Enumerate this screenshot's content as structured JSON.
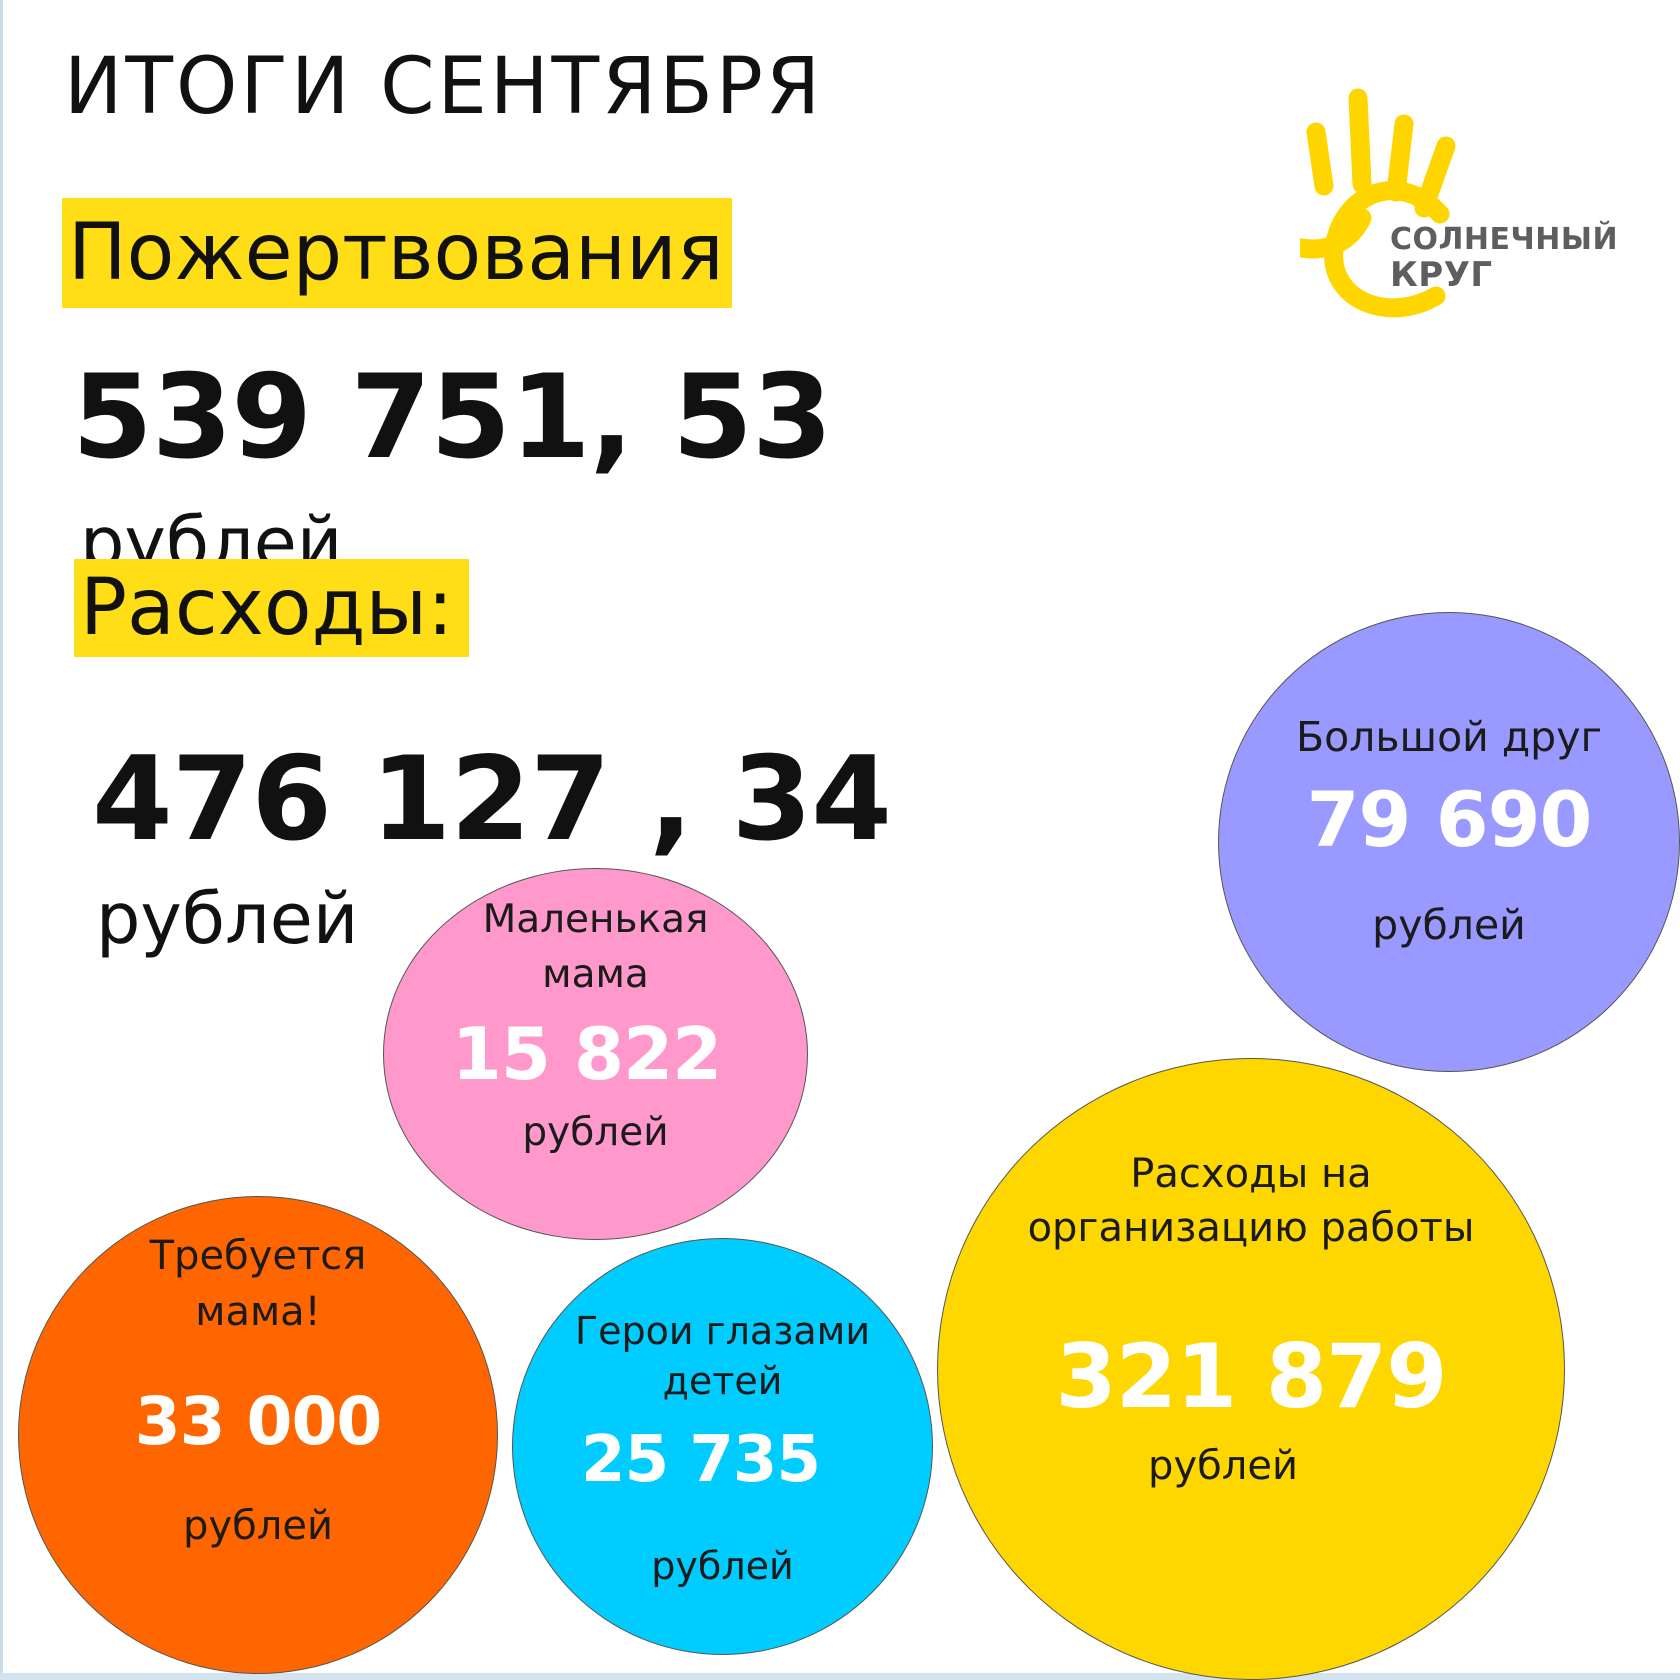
{
  "title": "ИТОГИ СЕНТЯБРЯ",
  "donations": {
    "label": "Пожертвования",
    "amount": "539 751, 53",
    "unit": "рублей"
  },
  "expenses": {
    "label": "Расходы:",
    "amount": "476 127 , 34",
    "unit": "рублей"
  },
  "logo": {
    "line1": "СОЛНЕЧНЫЙ",
    "line2": "КРУГ",
    "color": "#ffd500"
  },
  "categories": {
    "big_friend": {
      "label": "Большой друг",
      "value": "79 690",
      "unit": "рублей",
      "color": "#9999ff"
    },
    "little_mom": {
      "label_line1": "Маленькая",
      "label_line2": "мама",
      "value": "15 822",
      "unit": "рублей",
      "color": "#ff99cc"
    },
    "mom_needed": {
      "label_line1": "Требуется",
      "label_line2": "мама!",
      "value": "33 000",
      "unit": "рублей",
      "color": "#ff6600"
    },
    "heroes": {
      "label_line1": "Герои глазами",
      "label_line2": "детей",
      "value": "25 735",
      "unit": "рублей",
      "color": "#00ccff"
    },
    "organization": {
      "label_line1": "Расходы на",
      "label_line2": "организацию работы",
      "value": "321 879",
      "unit": "рублей",
      "color": "#ffd700"
    }
  }
}
